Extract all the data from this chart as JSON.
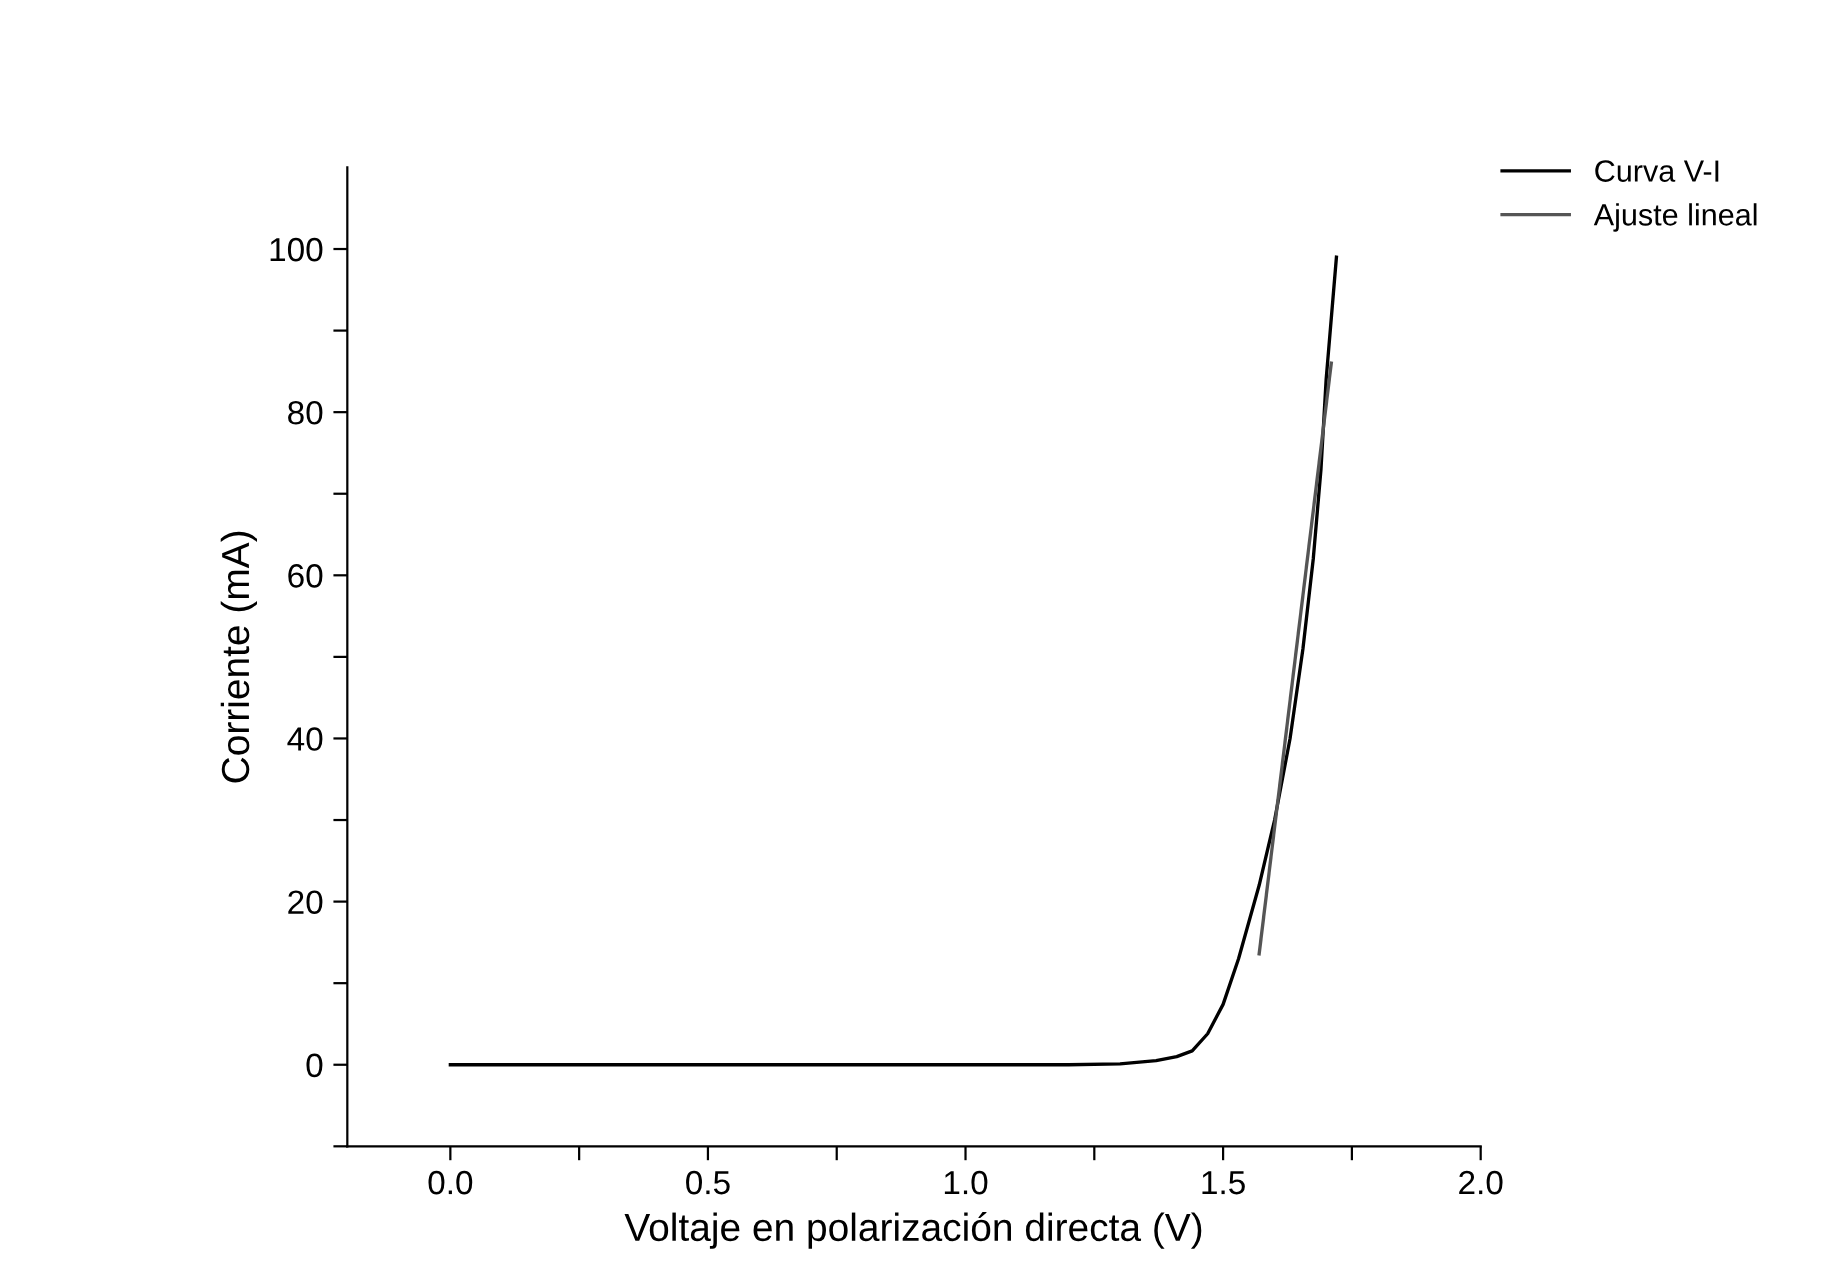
{
  "chart_data": {
    "type": "line",
    "xlabel": "Voltaje en polarización directa (V)",
    "ylabel": "Corriente (mA)",
    "xlim": [
      -0.2,
      2.0
    ],
    "ylim": [
      -10,
      110
    ],
    "xticks": [
      {
        "value": 0.0,
        "label": "0.0"
      },
      {
        "value": 0.25,
        "label": null
      },
      0.5,
      {
        "value": 0.75,
        "label": null
      },
      {
        "value": 1.0,
        "label": "1.0"
      },
      {
        "value": 1.25,
        "label": null
      },
      1.5,
      {
        "value": 1.75,
        "label": null
      },
      {
        "value": 2.0,
        "label": "2.0"
      }
    ],
    "yticks": [
      {
        "value": -10,
        "label": null
      },
      0,
      {
        "value": 10,
        "label": null
      },
      20,
      {
        "value": 30,
        "label": null
      },
      40,
      {
        "value": 50,
        "label": null
      },
      60,
      {
        "value": 70,
        "label": null
      },
      80,
      {
        "value": 90,
        "label": null
      },
      100
    ],
    "grid": false,
    "legend": "top right",
    "line_style": "solid",
    "series": [
      {
        "name": "Curva V-I",
        "color": "#000000",
        "x": [
          0.0,
          0.5,
          1.0,
          1.2,
          1.3,
          1.37,
          1.41,
          1.44,
          1.47,
          1.5,
          1.53,
          1.57,
          1.6,
          1.63,
          1.655,
          1.675,
          1.69,
          1.7,
          1.72
        ],
        "values": [
          0,
          0,
          0,
          0,
          0.1,
          0.5,
          1.0,
          1.7,
          3.8,
          7.4,
          13,
          22,
          30,
          40,
          51,
          62,
          73,
          84,
          99
        ]
      },
      {
        "name": "Ajuste lineal",
        "color": "#555555",
        "x": [
          1.57,
          1.71
        ],
        "values": [
          13.6,
          86
        ]
      }
    ]
  }
}
